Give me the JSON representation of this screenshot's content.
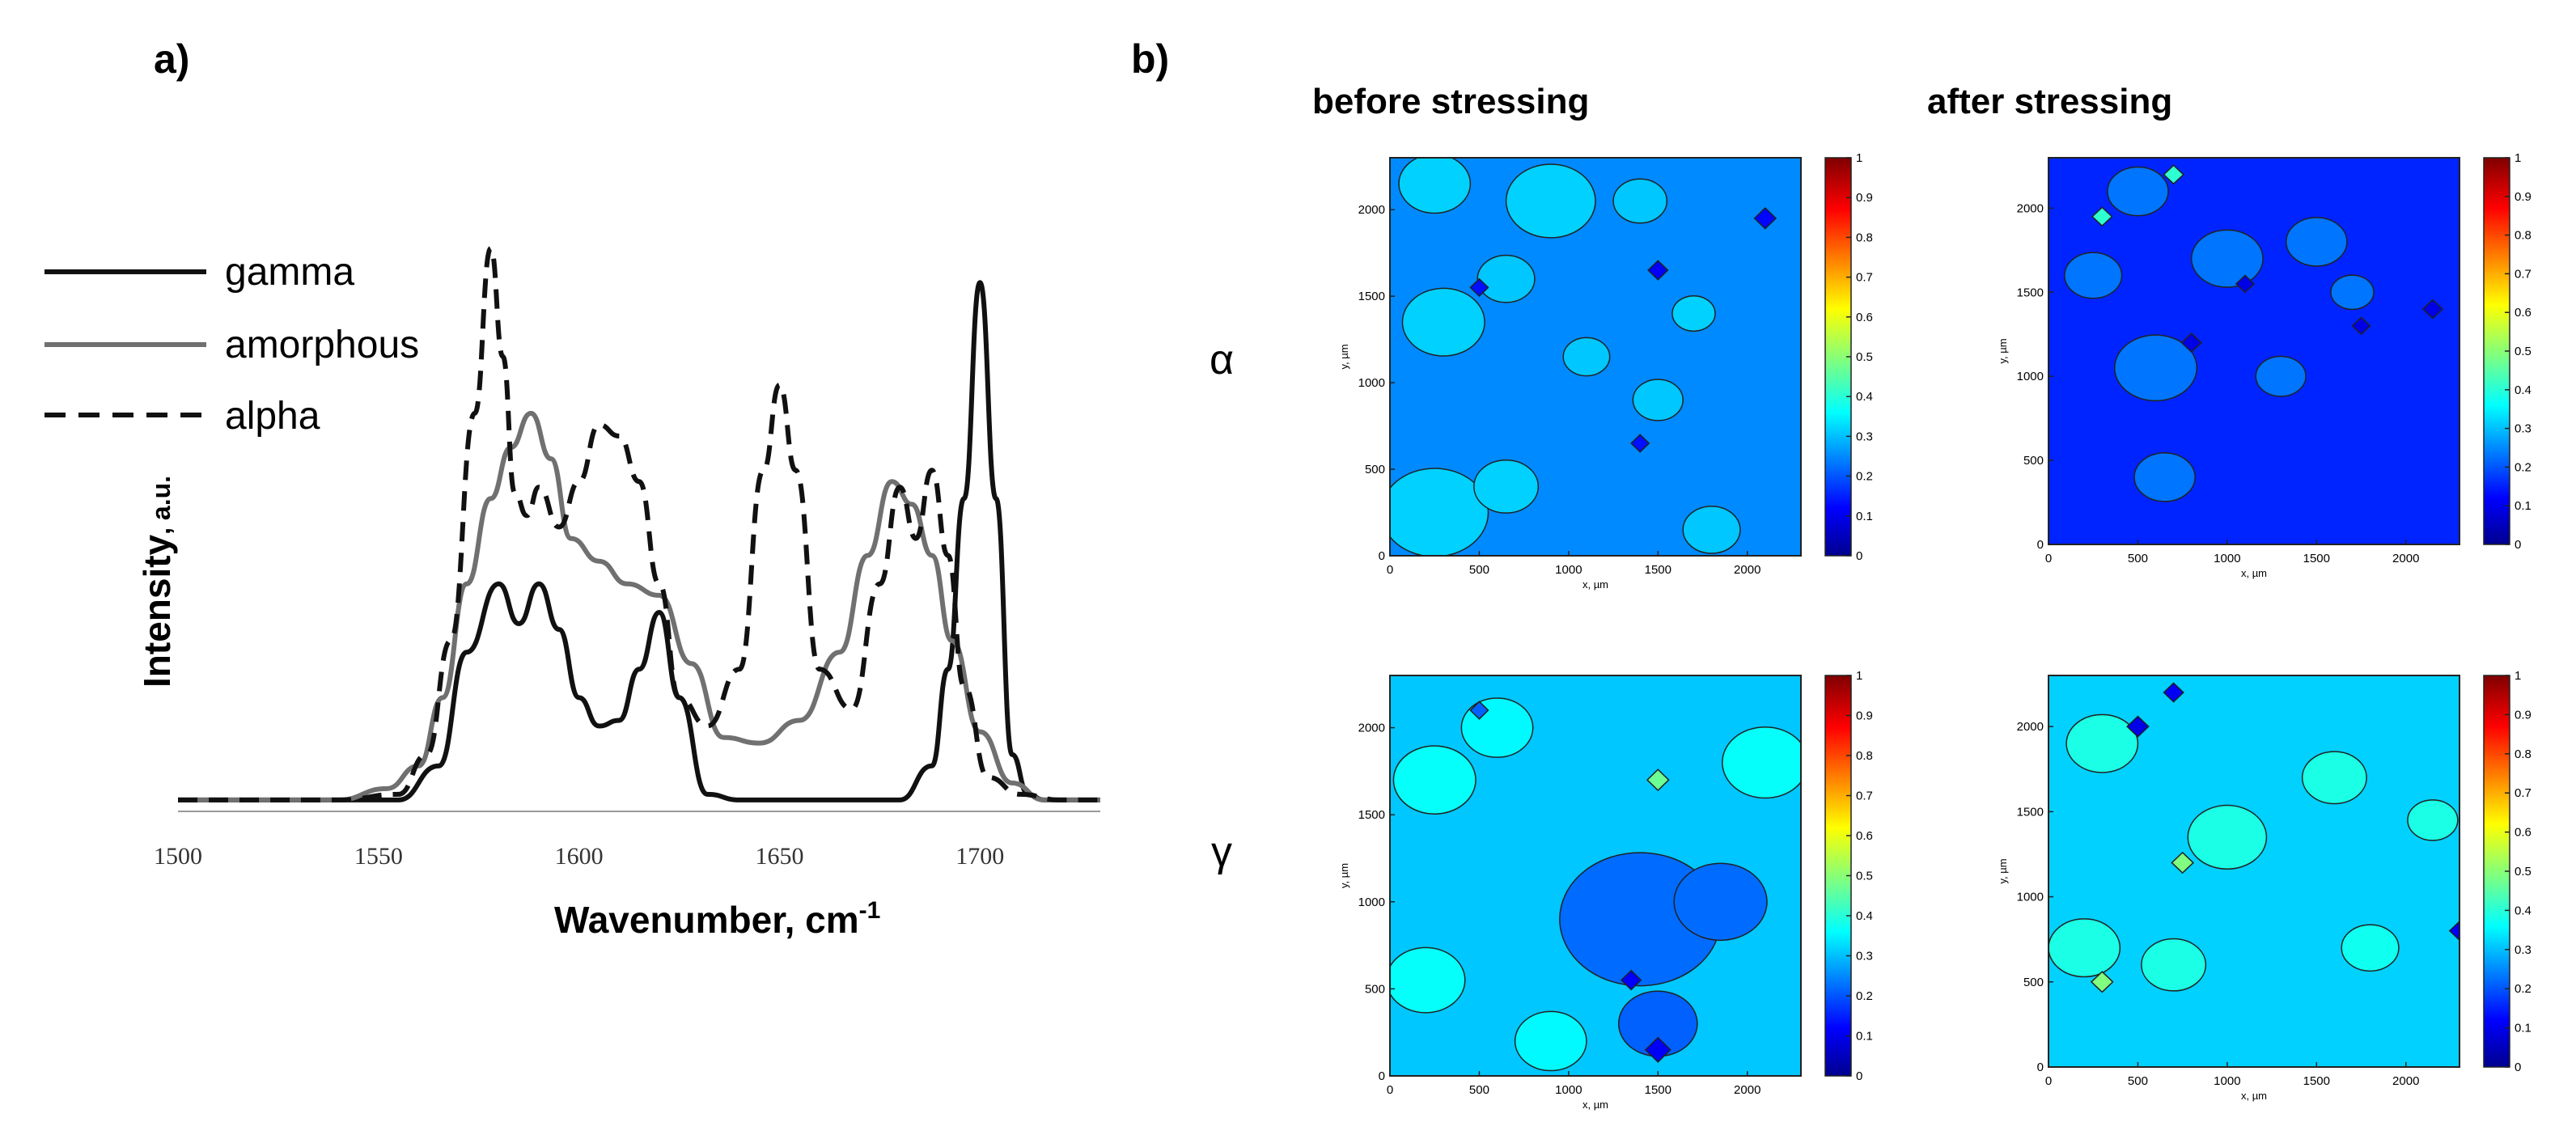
{
  "panel_a": {
    "label": "a)",
    "legend": [
      {
        "name": "gamma",
        "style": "solid",
        "color": "#111111"
      },
      {
        "name": "amorphous",
        "style": "solid",
        "color": "#707070"
      },
      {
        "name": "alpha",
        "style": "dashed",
        "color": "#111111"
      }
    ],
    "ylabel_main": "Intensity",
    "ylabel_unit": ", a.u.",
    "xlabel_main": "Wavenumber, cm",
    "xlabel_sup": "-1",
    "xticks": [
      "1500",
      "1550",
      "1600",
      "1650",
      "1700"
    ]
  },
  "panel_b": {
    "label": "b)",
    "col_titles": [
      "before stressing",
      "after stressing"
    ],
    "row_labels": [
      "α",
      "γ"
    ],
    "xticks": [
      "0",
      "500",
      "1000",
      "1500",
      "2000"
    ],
    "yticks": [
      "0",
      "500",
      "1000",
      "1500",
      "2000"
    ],
    "xlabel": "x, µm",
    "ylabel": "y, µm",
    "colorbar_ticks": [
      "0",
      "0.1",
      "0.2",
      "0.3",
      "0.4",
      "0.5",
      "0.6",
      "0.7",
      "0.8",
      "0.9",
      "1"
    ]
  },
  "colors": {
    "gamma": "#111111",
    "amorphous": "#707070",
    "alpha": "#111111",
    "colormap": "jet"
  },
  "chart_data": [
    {
      "type": "line",
      "xlabel": "Wavenumber, cm-1",
      "ylabel": "Intensity, a.u.",
      "xlim": [
        1500,
        1730
      ],
      "ylim": [
        0,
        1.0
      ],
      "grid": false,
      "legend_position": "top-left",
      "series": [
        {
          "name": "gamma",
          "x": [
            1500,
            1520,
            1540,
            1555,
            1565,
            1572,
            1580,
            1585,
            1590,
            1595,
            1600,
            1605,
            1610,
            1615,
            1620,
            1625,
            1632,
            1640,
            1660,
            1680,
            1688,
            1692,
            1696,
            1700,
            1704,
            1708,
            1712,
            1716,
            1722,
            1730
          ],
          "values": [
            0.02,
            0.02,
            0.02,
            0.02,
            0.08,
            0.28,
            0.4,
            0.33,
            0.4,
            0.32,
            0.2,
            0.15,
            0.16,
            0.25,
            0.35,
            0.2,
            0.03,
            0.02,
            0.02,
            0.02,
            0.08,
            0.25,
            0.55,
            0.93,
            0.55,
            0.1,
            0.03,
            0.02,
            0.02,
            0.02
          ]
        },
        {
          "name": "amorphous",
          "x": [
            1500,
            1520,
            1540,
            1552,
            1560,
            1566,
            1572,
            1578,
            1583,
            1588,
            1593,
            1598,
            1605,
            1612,
            1620,
            1628,
            1636,
            1645,
            1655,
            1665,
            1672,
            1678,
            1683,
            1688,
            1693,
            1700,
            1708,
            1716,
            1730
          ],
          "values": [
            0.02,
            0.02,
            0.02,
            0.04,
            0.08,
            0.2,
            0.4,
            0.55,
            0.64,
            0.7,
            0.62,
            0.48,
            0.44,
            0.4,
            0.38,
            0.26,
            0.13,
            0.12,
            0.16,
            0.28,
            0.45,
            0.58,
            0.54,
            0.45,
            0.3,
            0.14,
            0.05,
            0.02,
            0.02
          ]
        },
        {
          "name": "alpha",
          "x": [
            1500,
            1520,
            1540,
            1555,
            1562,
            1568,
            1574,
            1578,
            1581,
            1584,
            1587,
            1590,
            1595,
            1600,
            1605,
            1610,
            1615,
            1620,
            1625,
            1632,
            1640,
            1646,
            1650,
            1654,
            1660,
            1668,
            1675,
            1680,
            1684,
            1688,
            1692,
            1696,
            1702,
            1710,
            1720,
            1730
          ],
          "values": [
            0.02,
            0.02,
            0.02,
            0.03,
            0.1,
            0.3,
            0.7,
            0.99,
            0.8,
            0.56,
            0.52,
            0.57,
            0.5,
            0.58,
            0.68,
            0.66,
            0.58,
            0.4,
            0.2,
            0.15,
            0.25,
            0.6,
            0.75,
            0.6,
            0.25,
            0.18,
            0.4,
            0.57,
            0.48,
            0.6,
            0.45,
            0.22,
            0.06,
            0.03,
            0.02,
            0.02
          ]
        }
      ]
    },
    {
      "type": "heatmap",
      "title": "before stressing",
      "row_label": "α",
      "xlabel": "x, µm",
      "ylabel": "y, µm",
      "xlim": [
        0,
        2300
      ],
      "ylim": [
        0,
        2300
      ],
      "colorbar_range": [
        0,
        1
      ],
      "base_value": 0.26,
      "patches": [
        {
          "x": 250,
          "y": 2150,
          "r": 200,
          "v": 0.33
        },
        {
          "x": 900,
          "y": 2050,
          "r": 250,
          "v": 0.33
        },
        {
          "x": 1400,
          "y": 2050,
          "r": 150,
          "v": 0.32
        },
        {
          "x": 300,
          "y": 1350,
          "r": 230,
          "v": 0.33
        },
        {
          "x": 650,
          "y": 1600,
          "r": 160,
          "v": 0.32
        },
        {
          "x": 1100,
          "y": 1150,
          "r": 130,
          "v": 0.32
        },
        {
          "x": 1700,
          "y": 1400,
          "r": 120,
          "v": 0.33
        },
        {
          "x": 1500,
          "y": 900,
          "r": 140,
          "v": 0.32
        },
        {
          "x": 250,
          "y": 250,
          "r": 300,
          "v": 0.33
        },
        {
          "x": 650,
          "y": 400,
          "r": 180,
          "v": 0.33
        },
        {
          "x": 1800,
          "y": 150,
          "r": 160,
          "v": 0.32
        },
        {
          "x": 500,
          "y": 1550,
          "r": 50,
          "v": 0.14
        },
        {
          "x": 1500,
          "y": 1650,
          "r": 55,
          "v": 0.12
        },
        {
          "x": 2100,
          "y": 1950,
          "r": 60,
          "v": 0.13
        },
        {
          "x": 1400,
          "y": 650,
          "r": 50,
          "v": 0.14
        }
      ]
    },
    {
      "type": "heatmap",
      "title": "after stressing",
      "row_label": "α",
      "xlabel": "x, µm",
      "ylabel": "y, µm",
      "xlim": [
        0,
        2300
      ],
      "ylim": [
        0,
        2300
      ],
      "colorbar_range": [
        0,
        1
      ],
      "base_value": 0.16,
      "patches": [
        {
          "x": 500,
          "y": 2100,
          "r": 170,
          "v": 0.24
        },
        {
          "x": 1000,
          "y": 1700,
          "r": 200,
          "v": 0.24
        },
        {
          "x": 1500,
          "y": 1800,
          "r": 170,
          "v": 0.24
        },
        {
          "x": 250,
          "y": 1600,
          "r": 160,
          "v": 0.24
        },
        {
          "x": 600,
          "y": 1050,
          "r": 230,
          "v": 0.24
        },
        {
          "x": 1300,
          "y": 1000,
          "r": 140,
          "v": 0.24
        },
        {
          "x": 650,
          "y": 400,
          "r": 170,
          "v": 0.24
        },
        {
          "x": 1700,
          "y": 1500,
          "r": 120,
          "v": 0.24
        },
        {
          "x": 700,
          "y": 2200,
          "r": 55,
          "v": 0.42
        },
        {
          "x": 300,
          "y": 1950,
          "r": 55,
          "v": 0.42
        },
        {
          "x": 800,
          "y": 1200,
          "r": 55,
          "v": 0.1
        },
        {
          "x": 1100,
          "y": 1550,
          "r": 50,
          "v": 0.1
        },
        {
          "x": 1750,
          "y": 1300,
          "r": 50,
          "v": 0.1
        },
        {
          "x": 2150,
          "y": 1400,
          "r": 55,
          "v": 0.1
        }
      ]
    },
    {
      "type": "heatmap",
      "title": "before stressing",
      "row_label": "γ",
      "xlabel": "x, µm",
      "ylabel": "y, µm",
      "xlim": [
        0,
        2300
      ],
      "ylim": [
        0,
        2300
      ],
      "colorbar_range": [
        0,
        1
      ],
      "base_value": 0.32,
      "patches": [
        {
          "x": 1400,
          "y": 900,
          "r": 450,
          "v": 0.23
        },
        {
          "x": 1850,
          "y": 1000,
          "r": 260,
          "v": 0.23
        },
        {
          "x": 1500,
          "y": 300,
          "r": 220,
          "v": 0.22
        },
        {
          "x": 250,
          "y": 1700,
          "r": 230,
          "v": 0.38
        },
        {
          "x": 600,
          "y": 2000,
          "r": 200,
          "v": 0.37
        },
        {
          "x": 200,
          "y": 550,
          "r": 220,
          "v": 0.38
        },
        {
          "x": 900,
          "y": 200,
          "r": 200,
          "v": 0.37
        },
        {
          "x": 2100,
          "y": 1800,
          "r": 240,
          "v": 0.38
        },
        {
          "x": 1500,
          "y": 1700,
          "r": 60,
          "v": 0.48
        },
        {
          "x": 1350,
          "y": 550,
          "r": 55,
          "v": 0.12
        },
        {
          "x": 1500,
          "y": 150,
          "r": 70,
          "v": 0.12
        },
        {
          "x": 500,
          "y": 2100,
          "r": 50,
          "v": 0.22
        }
      ]
    },
    {
      "type": "heatmap",
      "title": "after stressing",
      "row_label": "γ",
      "xlabel": "x, µm",
      "ylabel": "y, µm",
      "xlim": [
        0,
        2300
      ],
      "ylim": [
        0,
        2300
      ],
      "colorbar_range": [
        0,
        1
      ],
      "base_value": 0.33,
      "patches": [
        {
          "x": 300,
          "y": 1900,
          "r": 200,
          "v": 0.4
        },
        {
          "x": 1000,
          "y": 1350,
          "r": 220,
          "v": 0.4
        },
        {
          "x": 1600,
          "y": 1700,
          "r": 180,
          "v": 0.4
        },
        {
          "x": 200,
          "y": 700,
          "r": 200,
          "v": 0.4
        },
        {
          "x": 700,
          "y": 600,
          "r": 180,
          "v": 0.4
        },
        {
          "x": 1800,
          "y": 700,
          "r": 160,
          "v": 0.39
        },
        {
          "x": 2150,
          "y": 1450,
          "r": 140,
          "v": 0.4
        },
        {
          "x": 300,
          "y": 500,
          "r": 60,
          "v": 0.5
        },
        {
          "x": 750,
          "y": 1200,
          "r": 60,
          "v": 0.5
        },
        {
          "x": 500,
          "y": 2000,
          "r": 60,
          "v": 0.1
        },
        {
          "x": 700,
          "y": 2200,
          "r": 55,
          "v": 0.12
        },
        {
          "x": 2300,
          "y": 800,
          "r": 55,
          "v": 0.12
        }
      ]
    }
  ]
}
